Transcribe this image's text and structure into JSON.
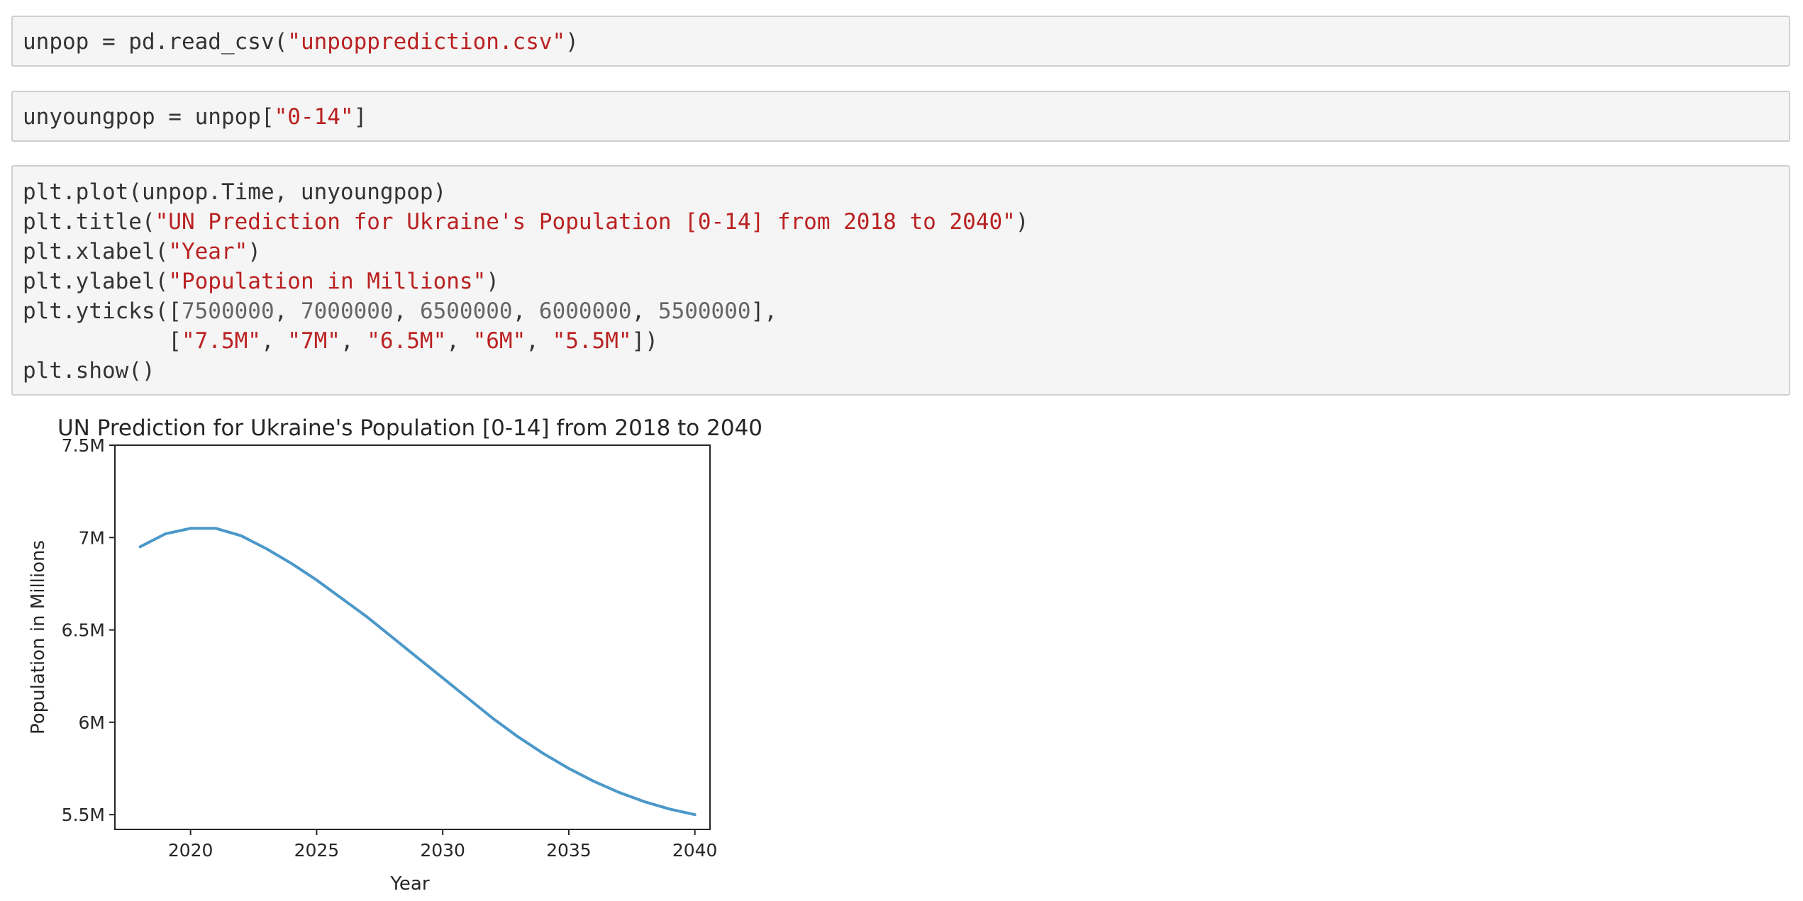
{
  "cells": [
    {
      "lines": [
        [
          {
            "t": "unpop = pd.read_csv(",
            "c": "plain"
          },
          {
            "t": "\"unpopprediction.csv\"",
            "c": "str"
          },
          {
            "t": ")",
            "c": "plain"
          }
        ]
      ]
    },
    {
      "lines": [
        [
          {
            "t": "unyoungpop = unpop[",
            "c": "plain"
          },
          {
            "t": "\"0-14\"",
            "c": "str"
          },
          {
            "t": "]",
            "c": "plain"
          }
        ]
      ]
    },
    {
      "lines": [
        [
          {
            "t": "plt.plot(unpop.Time, unyoungpop)",
            "c": "plain"
          }
        ],
        [
          {
            "t": "plt.title(",
            "c": "plain"
          },
          {
            "t": "\"UN Prediction for Ukraine's Population [0-14] from 2018 to 2040\"",
            "c": "str"
          },
          {
            "t": ")",
            "c": "plain"
          }
        ],
        [
          {
            "t": "plt.xlabel(",
            "c": "plain"
          },
          {
            "t": "\"Year\"",
            "c": "str"
          },
          {
            "t": ")",
            "c": "plain"
          }
        ],
        [
          {
            "t": "plt.ylabel(",
            "c": "plain"
          },
          {
            "t": "\"Population in Millions\"",
            "c": "str"
          },
          {
            "t": ")",
            "c": "plain"
          }
        ],
        [
          {
            "t": "plt.yticks([",
            "c": "plain"
          },
          {
            "t": "7500000",
            "c": "num"
          },
          {
            "t": ", ",
            "c": "plain"
          },
          {
            "t": "7000000",
            "c": "num"
          },
          {
            "t": ", ",
            "c": "plain"
          },
          {
            "t": "6500000",
            "c": "num"
          },
          {
            "t": ", ",
            "c": "plain"
          },
          {
            "t": "6000000",
            "c": "num"
          },
          {
            "t": ", ",
            "c": "plain"
          },
          {
            "t": "5500000",
            "c": "num"
          },
          {
            "t": "],",
            "c": "plain"
          }
        ],
        [
          {
            "t": "           [",
            "c": "plain"
          },
          {
            "t": "\"7.5M\"",
            "c": "str"
          },
          {
            "t": ", ",
            "c": "plain"
          },
          {
            "t": "\"7M\"",
            "c": "str"
          },
          {
            "t": ", ",
            "c": "plain"
          },
          {
            "t": "\"6.5M\"",
            "c": "str"
          },
          {
            "t": ", ",
            "c": "plain"
          },
          {
            "t": "\"6M\"",
            "c": "str"
          },
          {
            "t": ", ",
            "c": "plain"
          },
          {
            "t": "\"5.5M\"",
            "c": "str"
          },
          {
            "t": "])",
            "c": "plain"
          }
        ],
        [
          {
            "t": "plt.show()",
            "c": "plain"
          }
        ]
      ]
    }
  ],
  "chart_data": {
    "type": "line",
    "title": "UN Prediction for Ukraine's Population [0-14] from 2018 to 2040",
    "xlabel": "Year",
    "ylabel": "Population in Millions",
    "xlim": [
      2017,
      2040.6
    ],
    "ylim": [
      5420000,
      7500000
    ],
    "xticks": [
      2020,
      2025,
      2030,
      2035,
      2040
    ],
    "xtick_labels": [
      "2020",
      "2025",
      "2030",
      "2035",
      "2040"
    ],
    "yticks": [
      7500000,
      7000000,
      6500000,
      6000000,
      5500000
    ],
    "ytick_labels": [
      "7.5M",
      "7M",
      "6.5M",
      "6M",
      "5.5M"
    ],
    "grid": false,
    "line_color": "#4b98c9",
    "series": [
      {
        "x": [
          2018,
          2019,
          2020,
          2021,
          2022,
          2023,
          2024,
          2025,
          2026,
          2027,
          2028,
          2029,
          2030,
          2031,
          2032,
          2033,
          2034,
          2035,
          2036,
          2037,
          2038,
          2039,
          2040
        ],
        "values": [
          6950000,
          7020000,
          7050000,
          7050000,
          7010000,
          6940000,
          6860000,
          6770000,
          6670000,
          6570000,
          6460000,
          6350000,
          6240000,
          6130000,
          6020000,
          5920000,
          5830000,
          5750000,
          5680000,
          5620000,
          5570000,
          5530000,
          5500000
        ]
      }
    ]
  }
}
